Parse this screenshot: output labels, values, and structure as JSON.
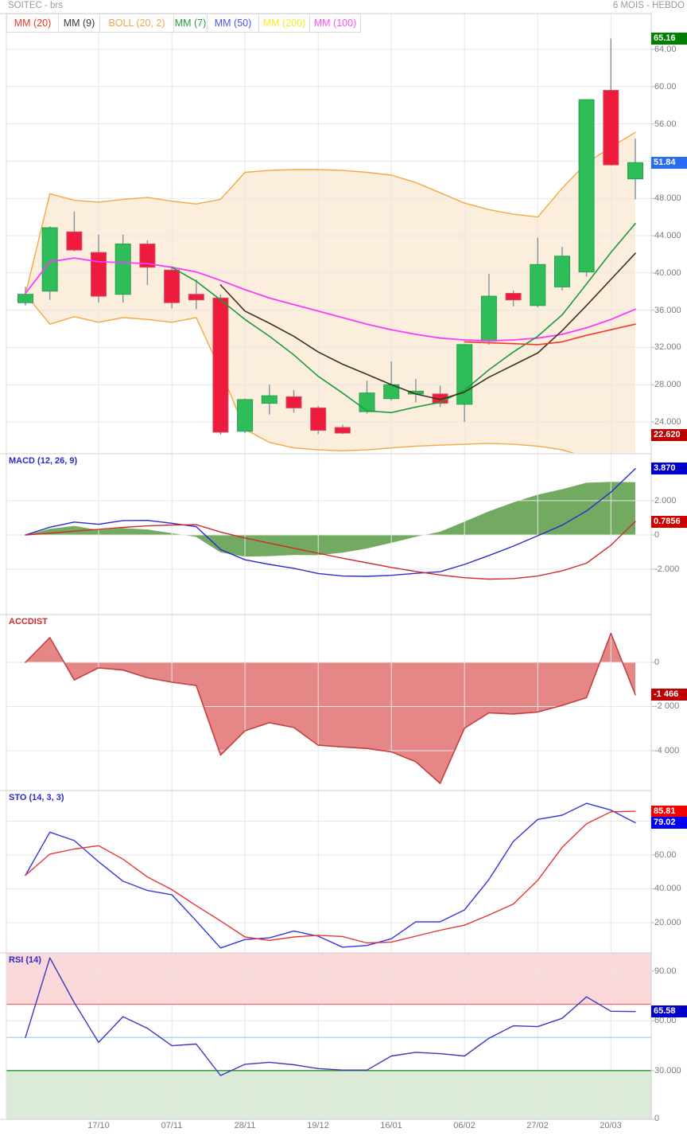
{
  "header": {
    "title": "SOITEC - brs",
    "period": "6 MOIS - HEBDO"
  },
  "legend": {
    "items": [
      {
        "label": "MM (20)",
        "color": "#f03528"
      },
      {
        "label": "MM (9)",
        "color": "#3a3a3a"
      },
      {
        "label": "BOLL (20, 2)",
        "color": "#f0a64a"
      },
      {
        "label": "MM (7)",
        "color": "#2a9c44"
      },
      {
        "label": "MM (50)",
        "color": "#4553ef"
      },
      {
        "label": "MM (200)",
        "color": "#f7ec1f"
      },
      {
        "label": "MM (100)",
        "color": "#fa4ffa"
      }
    ]
  },
  "x_axis": {
    "labels": [
      "17/10",
      "07/11",
      "28/11",
      "19/12",
      "16/01",
      "06/02",
      "27/02",
      "20/03"
    ],
    "label_indices": [
      3,
      6,
      9,
      12,
      15,
      18,
      21,
      24
    ]
  },
  "chart_data": [
    {
      "id": "price",
      "type": "candlestick",
      "y_range": [
        20.58,
        67.85
      ],
      "y_ticks": [
        {
          "v": 64,
          "label": "64.00"
        },
        {
          "v": 60,
          "label": "60.00"
        },
        {
          "v": 56,
          "label": "56.00"
        },
        {
          "v": 52,
          "label": "52.00"
        },
        {
          "v": 48,
          "label": "48.000"
        },
        {
          "v": 44,
          "label": "44.000"
        },
        {
          "v": 40,
          "label": "40.000"
        },
        {
          "v": 36,
          "label": "36.000"
        },
        {
          "v": 32,
          "label": "32.000"
        },
        {
          "v": 28,
          "label": "28.000"
        },
        {
          "v": 24,
          "label": "24.000"
        }
      ],
      "badges": [
        {
          "text": "65.16",
          "v": 65.16,
          "bg": "#008000"
        },
        {
          "text": "51.84",
          "v": 51.84,
          "bg": "#2a6cf0"
        },
        {
          "text": "22.620",
          "v": 22.62,
          "bg": "#c00000"
        }
      ],
      "candles": [
        [
          36.8,
          38.5,
          36.5,
          37.7
        ],
        [
          38.05,
          45.0,
          37.1,
          44.85
        ],
        [
          44.4,
          46.6,
          42.3,
          42.45
        ],
        [
          42.2,
          44.1,
          36.8,
          37.5
        ],
        [
          37.7,
          44.1,
          36.8,
          43.1
        ],
        [
          43.1,
          43.5,
          38.7,
          40.6
        ],
        [
          40.3,
          40.7,
          36.2,
          36.8
        ],
        [
          37.7,
          39.3,
          36.1,
          37.1
        ],
        [
          37.3,
          37.7,
          22.62,
          22.9
        ],
        [
          23.0,
          26.5,
          22.8,
          26.4
        ],
        [
          26.0,
          28.0,
          24.8,
          26.8
        ],
        [
          26.7,
          27.4,
          25.0,
          25.5
        ],
        [
          25.5,
          25.7,
          22.7,
          23.1
        ],
        [
          23.4,
          23.7,
          22.7,
          22.8
        ],
        [
          25.1,
          28.4,
          24.9,
          27.1
        ],
        [
          26.5,
          30.5,
          26.3,
          28.0
        ],
        [
          27.0,
          28.6,
          26.1,
          27.3
        ],
        [
          27.0,
          27.9,
          25.6,
          26.0
        ],
        [
          25.9,
          32.4,
          24.0,
          32.3
        ],
        [
          32.7,
          39.9,
          32.3,
          37.5
        ],
        [
          37.8,
          38.1,
          36.4,
          37.1
        ],
        [
          36.5,
          43.8,
          36.3,
          40.9
        ],
        [
          38.5,
          42.8,
          38.1,
          41.8
        ],
        [
          40.1,
          58.6,
          39.6,
          58.6
        ],
        [
          59.6,
          65.16,
          51.5,
          51.6
        ],
        [
          50.1,
          54.4,
          47.9,
          51.84
        ]
      ],
      "overlays": {
        "boll_upper": [
          37.7,
          48.5,
          47.8,
          47.6,
          47.9,
          48.1,
          47.7,
          47.4,
          47.9,
          50.8,
          51.0,
          51.1,
          51.1,
          51.0,
          50.8,
          50.5,
          49.7,
          48.6,
          47.5,
          46.8,
          46.3,
          46.0,
          49.1,
          51.8,
          53.5,
          55.1
        ],
        "boll_lower": [
          37.7,
          34.5,
          35.3,
          34.7,
          35.2,
          35.0,
          34.7,
          35.2,
          29.5,
          23.2,
          21.8,
          21.2,
          21.0,
          20.9,
          21.0,
          21.2,
          21.4,
          21.5,
          21.6,
          21.7,
          21.6,
          21.4,
          21.0,
          20.2,
          19.6,
          19.2
        ],
        "mm100": [
          37.8,
          41.2,
          41.6,
          41.2,
          41.1,
          41.0,
          40.6,
          40.1,
          39.2,
          38.2,
          37.3,
          36.6,
          35.9,
          35.2,
          34.5,
          33.9,
          33.4,
          33.0,
          32.8,
          32.7,
          32.8,
          33.0,
          33.4,
          34.1,
          35.0,
          36.1
        ],
        "mm9": [
          null,
          null,
          null,
          null,
          null,
          null,
          null,
          null,
          38.7,
          35.9,
          34.6,
          33.2,
          31.5,
          30.2,
          29.1,
          28.0,
          27.0,
          26.4,
          27.2,
          28.8,
          30.1,
          31.4,
          33.8,
          36.5,
          39.3,
          42.1
        ],
        "mm7": [
          null,
          null,
          null,
          null,
          null,
          null,
          40.6,
          39.1,
          37.1,
          35.0,
          33.2,
          31.2,
          28.9,
          27.1,
          25.2,
          25.0,
          25.6,
          26.1,
          27.4,
          29.6,
          31.5,
          33.2,
          35.5,
          38.8,
          42.2,
          45.3
        ],
        "mm20": [
          null,
          null,
          null,
          null,
          null,
          null,
          null,
          null,
          null,
          null,
          null,
          null,
          null,
          null,
          null,
          null,
          null,
          null,
          32.6,
          32.5,
          32.4,
          32.3,
          32.6,
          33.3,
          33.9,
          34.5
        ]
      },
      "colors": {
        "up": "#2ebd59",
        "up_border": "#25a14e",
        "down": "#ee1b3d",
        "down_border": "#d14f63",
        "wick": "#7d93a3",
        "boll_line": "#f4a842",
        "boll_fill": "#fbeedc",
        "mm100": "#fa3bfa",
        "mm9": "#42301c",
        "mm7": "#1d9c3a",
        "mm20": "#f23b28"
      }
    },
    {
      "id": "macd",
      "type": "line",
      "label": {
        "text": "MACD (12, 26, 9)",
        "color": "#2929cc"
      },
      "y_range": [
        -4.65,
        4.74
      ],
      "y_ticks": [
        {
          "v": 2,
          "label": "2.000"
        },
        {
          "v": 0,
          "label": "0"
        },
        {
          "v": -2,
          "label": "-2.000"
        }
      ],
      "badges": [
        {
          "text": "3.870",
          "v": 3.87,
          "bg": "#0000cd"
        },
        {
          "text": "0.7856",
          "v": 0.7856,
          "bg": "#cd0000"
        }
      ],
      "area": {
        "name": "macd-histogram",
        "color": "#72aa61",
        "values": [
          0.0,
          0.35,
          0.53,
          0.29,
          0.4,
          0.32,
          0.1,
          -0.12,
          -1.02,
          -1.27,
          -1.24,
          -1.17,
          -1.18,
          -1.04,
          -0.79,
          -0.46,
          -0.11,
          0.19,
          0.78,
          1.38,
          1.9,
          2.35,
          2.67,
          3.05,
          3.1,
          3.08
        ]
      },
      "series": [
        {
          "name": "macd",
          "color": "#2b2bd0",
          "values": [
            0.0,
            0.45,
            0.75,
            0.62,
            0.84,
            0.85,
            0.68,
            0.48,
            -0.85,
            -1.45,
            -1.72,
            -1.95,
            -2.25,
            -2.4,
            -2.42,
            -2.36,
            -2.24,
            -2.15,
            -1.72,
            -1.2,
            -0.65,
            -0.05,
            0.57,
            1.4,
            2.5,
            3.87
          ]
        },
        {
          "name": "signal",
          "color": "#d02b2b",
          "values": [
            0.0,
            0.1,
            0.22,
            0.33,
            0.44,
            0.53,
            0.58,
            0.6,
            0.17,
            -0.18,
            -0.48,
            -0.78,
            -1.07,
            -1.36,
            -1.63,
            -1.9,
            -2.13,
            -2.34,
            -2.5,
            -2.58,
            -2.55,
            -2.4,
            -2.1,
            -1.65,
            -0.6,
            0.7856
          ]
        }
      ]
    },
    {
      "id": "accdist",
      "type": "area",
      "label": {
        "text": "ACCDIST",
        "color": "#d02b2b"
      },
      "y_range": [
        -5802,
        2162
      ],
      "y_ticks": [
        {
          "v": 0,
          "label": "0"
        },
        {
          "v": -2000,
          "label": "-2 000"
        },
        {
          "v": -4000,
          "label": "-4 000"
        }
      ],
      "badges": [
        {
          "text": "-1 466",
          "v": -1466,
          "bg": "#c00000"
        }
      ],
      "area": {
        "name": "accdist",
        "color": "#e68787",
        "stroke": "#c54040",
        "values": [
          0,
          1120,
          -800,
          -250,
          -350,
          -700,
          -900,
          -1050,
          -4200,
          -3100,
          -2730,
          -2950,
          -3750,
          -3830,
          -3900,
          -4050,
          -4500,
          -5480,
          -2980,
          -2290,
          -2340,
          -2250,
          -1950,
          -1600,
          1310,
          -1466
        ]
      }
    },
    {
      "id": "sto",
      "type": "line",
      "label": {
        "text": "STO (14, 3, 3)",
        "color": "#2929cc"
      },
      "y_range": [
        2.1,
        98.1
      ],
      "y_ticks": [
        {
          "v": 80,
          "label": ""
        },
        {
          "v": 60,
          "label": "60.00"
        },
        {
          "v": 40,
          "label": "40.000"
        },
        {
          "v": 20,
          "label": "20.000"
        }
      ],
      "badges": [
        {
          "text": "85.81",
          "v": 85.81,
          "bg": "#f40000"
        },
        {
          "text": "79.02",
          "v": 79.02,
          "bg": "#0000f4"
        }
      ],
      "series": [
        {
          "name": "percent_k",
          "color": "#3535e0",
          "values": [
            48,
            73.5,
            68.5,
            56,
            44.5,
            39,
            36.5,
            21,
            5,
            10,
            11,
            15,
            12,
            5.5,
            6.5,
            10.5,
            20.5,
            20.5,
            27.5,
            45.5,
            68,
            81,
            83.5,
            90.5,
            86.5,
            79.02
          ]
        },
        {
          "name": "percent_d",
          "color": "#e53535",
          "values": [
            48,
            60.5,
            63.5,
            65.5,
            57.5,
            47,
            39.5,
            30,
            21,
            11.5,
            9.5,
            11.5,
            12.5,
            11.8,
            8,
            8.5,
            12,
            15.5,
            18.5,
            24.5,
            31,
            45,
            64.5,
            78.5,
            85.5,
            85.81
          ]
        }
      ]
    },
    {
      "id": "rsi",
      "type": "line",
      "label": {
        "text": "RSI (14)",
        "color": "#2929cc"
      },
      "y_range": [
        0.6,
        101
      ],
      "y_ticks": [
        {
          "v": 90,
          "label": "90.00"
        },
        {
          "v": 60,
          "label": "60.00"
        },
        {
          "v": 30,
          "label": "30.000"
        },
        {
          "v": 0,
          "label": "0"
        }
      ],
      "badges": [
        {
          "text": "65.58",
          "v": 65.58,
          "bg": "#0000c8"
        }
      ],
      "zones": [
        {
          "from": 70,
          "to": 101,
          "color": "#fbd8da"
        },
        {
          "from": 0.6,
          "to": 30,
          "color": "#dcebd8"
        }
      ],
      "ref_lines": [
        {
          "v": 70,
          "color": "#f26666"
        },
        {
          "v": 50,
          "color": "#a8d4f0"
        },
        {
          "v": 30,
          "color": "#2f8f2f"
        }
      ],
      "series": [
        {
          "name": "rsi",
          "color": "#3838c0",
          "values": [
            50,
            98,
            71,
            47,
            62.5,
            55.5,
            45,
            46,
            27,
            33.8,
            35,
            33.5,
            31.2,
            30.3,
            30.3,
            38.8,
            41,
            40.2,
            38.8,
            49.5,
            57,
            56.5,
            61.5,
            74.5,
            65.8,
            65.58
          ]
        }
      ]
    }
  ]
}
